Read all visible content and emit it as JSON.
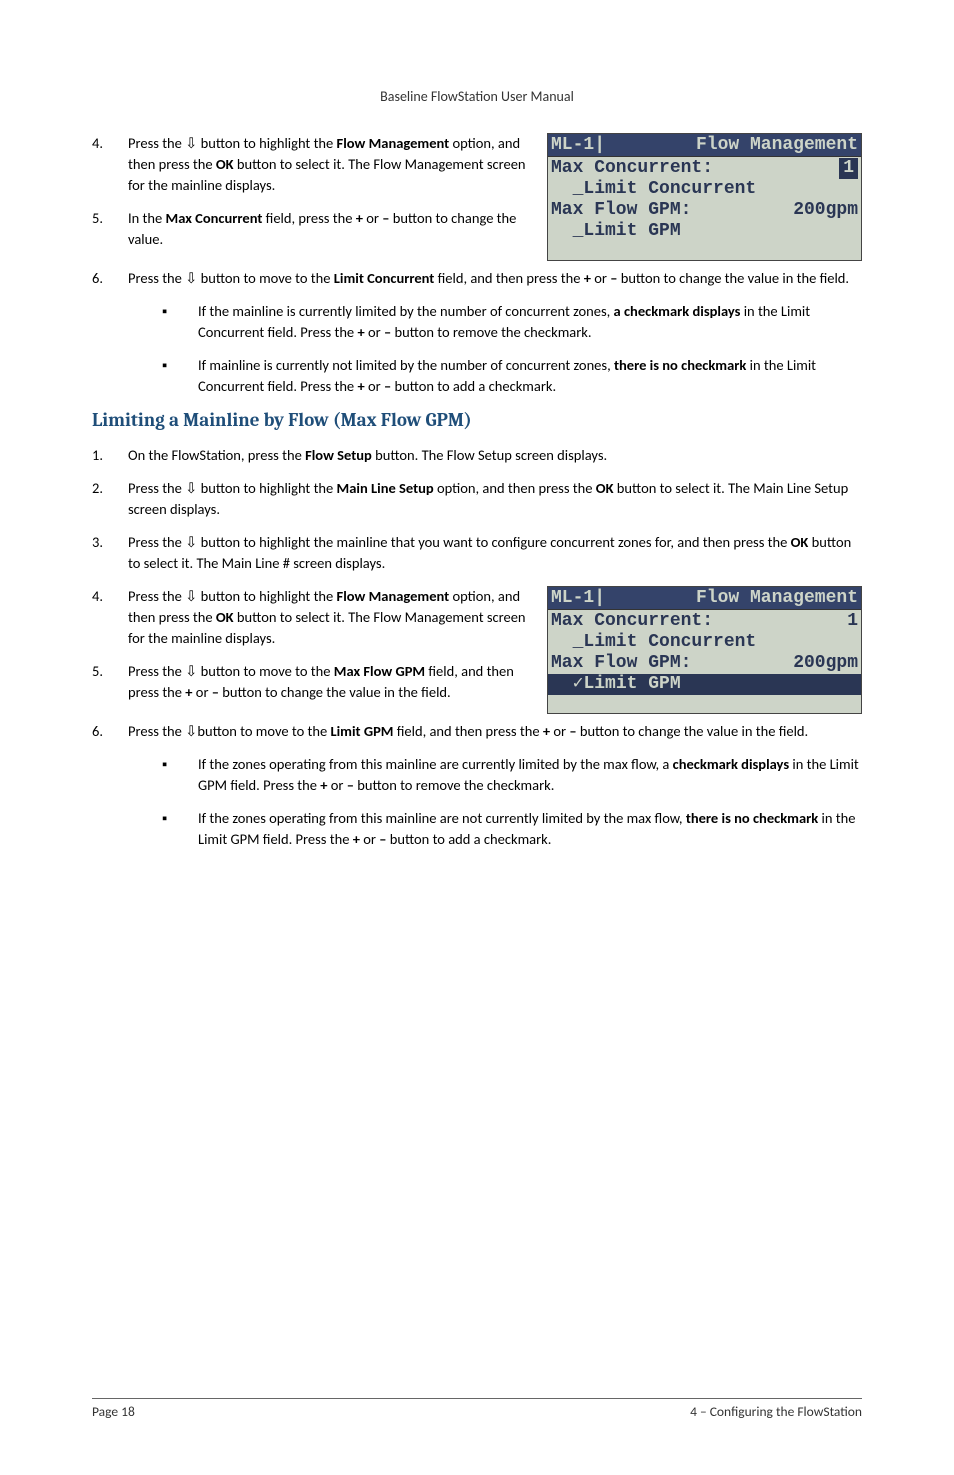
{
  "header": {
    "title": "Baseline FlowStation User Manual"
  },
  "glyphs": {
    "down": "⇩",
    "bullet": "▪",
    "check": "✓",
    "underscore": "_"
  },
  "section_a": {
    "items": [
      {
        "n": "4.",
        "parts": [
          "Press the ",
          "@down",
          " button to highlight the ",
          "@b:Flow Management",
          " option, and then press the ",
          "@b:OK",
          " button to select it. The Flow Management screen for the mainline displays."
        ]
      },
      {
        "n": "5.",
        "parts": [
          "In the ",
          "@b:Max Concurrent",
          " field, press the ",
          "@b:+",
          " or ",
          "@b:–",
          " button to change the value."
        ]
      },
      {
        "n": "6.",
        "parts": [
          "Press the ",
          "@down",
          " button to move to the ",
          "@b:Limit Concurrent",
          " field, and then press the ",
          "@b:+",
          " or ",
          "@b:–",
          " button to change the value in the field."
        ]
      }
    ],
    "bullets": [
      {
        "parts": [
          "If the mainline is currently limited by the number of concurrent zones, ",
          "@b:a checkmark displays",
          " in the Limit Concurrent field. Press the ",
          "@b:+",
          " or ",
          "@b:–",
          " button to remove the checkmark."
        ]
      },
      {
        "parts": [
          "If mainline is currently not limited by the number of concurrent zones, ",
          "@b:there is no checkmark",
          " in the Limit Concurrent field. Press the ",
          "@b:+",
          " or ",
          "@b:–",
          " button to add a checkmark."
        ]
      }
    ]
  },
  "heading": "Limiting a Mainline by Flow (Max Flow GPM)",
  "section_b": {
    "items": [
      {
        "n": "1.",
        "parts": [
          "On the FlowStation, press the ",
          "@b:Flow Setup",
          " button. The Flow Setup screen displays."
        ]
      },
      {
        "n": "2.",
        "parts": [
          "Press the ",
          "@down",
          " button to highlight the ",
          "@b:Main Line Setup",
          " option, and then press the ",
          "@b:OK",
          " button to select it. The Main Line Setup screen displays."
        ]
      },
      {
        "n": "3.",
        "parts": [
          "Press the ",
          "@down",
          " button to highlight the mainline that you want to configure concurrent zones for, and then press the ",
          "@b:OK",
          " button to select it. The Main Line # screen displays."
        ]
      },
      {
        "n": "4.",
        "parts": [
          "Press the ",
          "@down",
          " button to highlight the ",
          "@b:Flow Management",
          " option, and then press the ",
          "@b:OK",
          " button to select it. The Flow Management screen for the mainline displays."
        ]
      },
      {
        "n": "5.",
        "parts": [
          "Press the ",
          "@down",
          " button to move to the ",
          "@b:Max Flow GPM",
          " field, and then press the ",
          "@b:+",
          " or ",
          "@b:–",
          " button to change the value in the field."
        ]
      },
      {
        "n": "6.",
        "parts": [
          "Press the ",
          "@down",
          "button to move to the ",
          "@b:Limit GPM",
          " field, and then press the ",
          "@b:+",
          " or ",
          "@b:–",
          " button to change the value in the field."
        ]
      }
    ],
    "bullets": [
      {
        "parts": [
          "If the zones operating from this mainline are currently limited by the max flow, a ",
          "@b:checkmark displays",
          " in the Limit GPM field. Press the ",
          "@b:+",
          " or ",
          "@b:–",
          " button to remove the checkmark."
        ]
      },
      {
        "parts": [
          "If the zones operating from this mainline are not currently limited by the max flow, ",
          "@b:there is no checkmark",
          " in the Limit GPM field. Press the ",
          "@b:+",
          " or ",
          "@b:–",
          " button to add a checkmark."
        ]
      }
    ]
  },
  "lcd1": {
    "title_left": "ML-1|",
    "title_right": "Flow Management",
    "lines": [
      {
        "l": "Max Concurrent:",
        "r_inv": "1"
      },
      {
        "l": "  _Limit Concurrent"
      },
      {
        "l": "Max Flow GPM:",
        "r": "200gpm"
      },
      {
        "l": "  _Limit GPM"
      }
    ]
  },
  "lcd2": {
    "title_left": "ML-1|",
    "title_right": "Flow Management",
    "lines": [
      {
        "l": "Max Concurrent:",
        "r": "1"
      },
      {
        "l": "  _Limit Concurrent"
      },
      {
        "l": "Max Flow GPM:",
        "r": "200gpm"
      },
      {
        "l_inv": "  ✓Limit GPM"
      }
    ]
  },
  "footer": {
    "left": "Page 18",
    "right": "4 – Configuring the FlowStation"
  },
  "colors": {
    "heading": "#1f4e79",
    "lcd_bg": "#cdd4c8",
    "lcd_fg": "#2a3654",
    "lcd_inv_bg": "#2a3654",
    "lcd_inv_fg": "#cdd4c8",
    "lcd_title_bg": "#34436a"
  }
}
